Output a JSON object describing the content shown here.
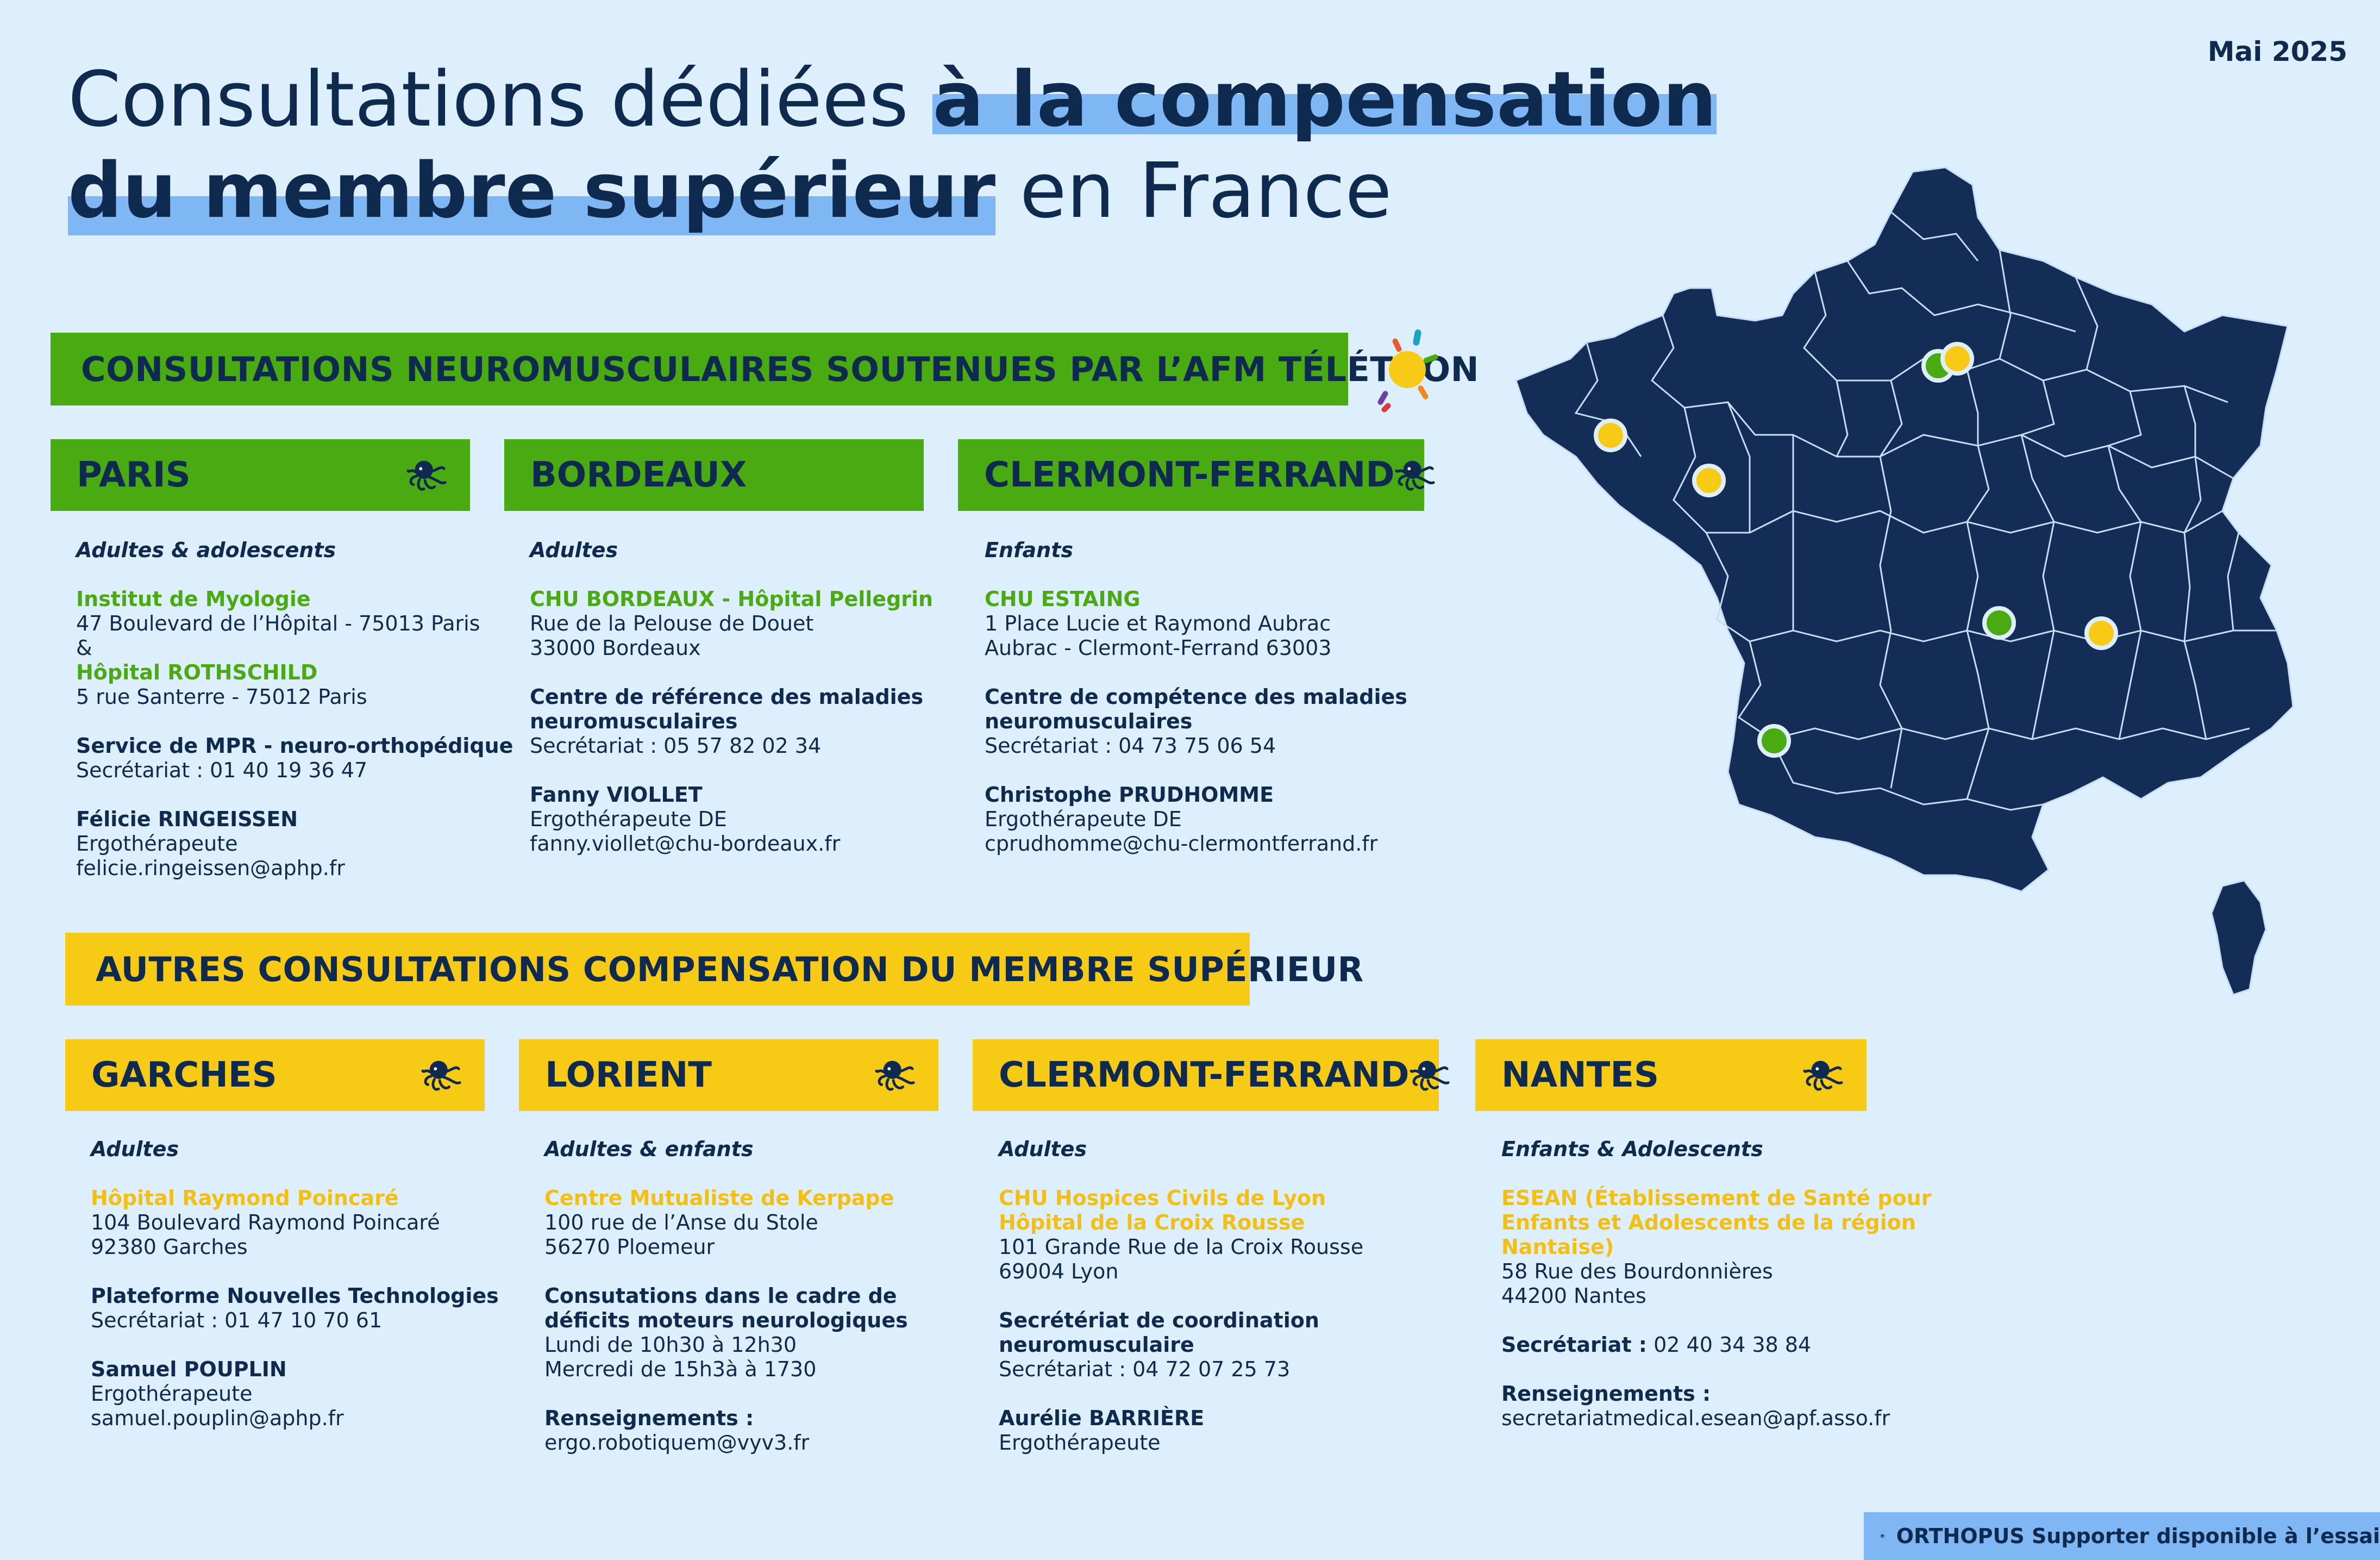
{
  "date": "Mai 2025",
  "title": {
    "part1": "Consultations dédiées ",
    "part2": "à la compensation",
    "part3": "du membre supérieur",
    "part4": " en France"
  },
  "section1": {
    "title": "CONSULTATIONS NEUROMUSCULAIRES SOUTENUES PAR L’AFM TÉLÉTHON",
    "cards": [
      {
        "city": "PARIS",
        "audience": "Adultes & adolescents",
        "inst1": "Institut de Myologie",
        "addr1": "47 Boulevard de l’Hôpital - 75013 Paris",
        "amp": "&",
        "inst2": "Hôpital ROTHSCHILD",
        "addr2": "5 rue Santerre - 75012 Paris",
        "service": "Service de MPR - neuro-orthopédique",
        "secretariat": "Secrétariat : 01 40 19 36 47",
        "contact": "Félicie RINGEISSEN",
        "role": "Ergothérapeute",
        "email": "felicie.ringeissen@aphp.fr"
      },
      {
        "city": "BORDEAUX",
        "audience": "Adultes",
        "inst1": "CHU BORDEAUX - Hôpital Pellegrin",
        "addr1": "Rue de la Pelouse de Douet",
        "addr2": "33000 Bordeaux",
        "service1": "Centre de référence des maladies",
        "service2": "neuromusculaires",
        "secretariat": "Secrétariat : 05 57 82 02 34",
        "contact": "Fanny VIOLLET",
        "role": "Ergothérapeute DE",
        "email": "fanny.viollet@chu-bordeaux.fr"
      },
      {
        "city": "CLERMONT-FERRAND",
        "audience": "Enfants",
        "inst1": "CHU ESTAING",
        "addr1": "1 Place Lucie et Raymond Aubrac",
        "addr2": "Aubrac - Clermont-Ferrand 63003",
        "service1": "Centre de compétence des maladies",
        "service2": "neuromusculaires",
        "secretariat": "Secrétariat : 04 73 75 06 54",
        "contact": "Christophe PRUDHOMME",
        "role": "Ergothérapeute DE",
        "email": "cprudhomme@chu-clermontferrand.fr"
      }
    ]
  },
  "section2": {
    "title": "AUTRES CONSULTATIONS COMPENSATION DU MEMBRE SUPÉRIEUR",
    "cards": [
      {
        "city": "GARCHES",
        "audience": "Adultes",
        "inst1": "Hôpital Raymond Poincaré",
        "addr1": "104 Boulevard Raymond Poincaré",
        "addr2": "92380 Garches",
        "service": "Plateforme Nouvelles Technologies",
        "secretariat": "Secrétariat : 01 47 10 70 61",
        "contact": "Samuel POUPLIN",
        "role": "Ergothérapeute",
        "email": "samuel.pouplin@aphp.fr"
      },
      {
        "city": "LORIENT",
        "audience": "Adultes & enfants",
        "inst1": "Centre Mutualiste de Kerpape",
        "addr1": "100 rue de l’Anse du Stole",
        "addr2": "56270 Ploemeur",
        "service1": "Consutations dans le cadre de",
        "service2": "déficits moteurs neurologiques",
        "hours1": "Lundi de 10h30 à 12h30",
        "hours2": "Mercredi de 15h3à à 1730",
        "info_label": "Renseignements :",
        "email": "ergo.robotiquem@vyv3.fr"
      },
      {
        "city": "CLERMONT-FERRAND",
        "audience": "Adultes",
        "inst1": "CHU Hospices Civils de Lyon",
        "inst2": "Hôpital de la Croix Rousse",
        "addr1": "101 Grande Rue de la Croix Rousse",
        "addr2": "69004 Lyon",
        "service1": "Secrétériat de coordination",
        "service2": "neuromusculaire",
        "secretariat": "Secrétariat : 04 72 07 25 73",
        "contact": "Aurélie BARRIÈRE",
        "role": "Ergothérapeute"
      },
      {
        "city": "NANTES",
        "audience": "Enfants & Adolescents",
        "inst1": "ESEAN (Établissement de Santé pour",
        "inst2": "Enfants et Adolescents de la région",
        "inst3": "Nantaise)",
        "addr1": "58 Rue des Bourdonnières",
        "addr2": "44200 Nantes",
        "secretariat_label": "Secrétariat :",
        "secretariat_value": " 02 40 34 38 84",
        "info_label": "Renseignements :",
        "email": "secretariatmedical.esean@apf.asso.fr"
      }
    ]
  },
  "footer": "ORTHOPUS Supporter disponible à l’essai",
  "colors": {
    "background": "#ddeefc",
    "navy": "#0f2a4f",
    "green": "#4aaa12",
    "yellow": "#f7ca15",
    "highlight": "#7fb6f4"
  },
  "icons": {
    "city_header": "octopus-icon",
    "section1": "afm-telethon-logo",
    "map": "france-map",
    "markers": "location-dot-icon"
  }
}
